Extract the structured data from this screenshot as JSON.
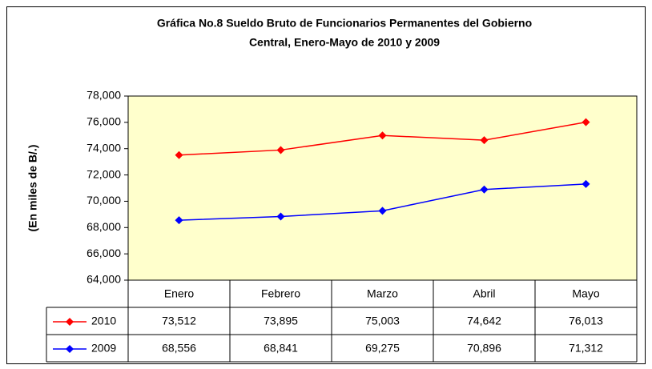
{
  "chart_data": {
    "type": "line",
    "title": [
      "Gráfica No.8 Sueldo Bruto de Funcionarios Permanentes del Gobierno",
      "Central, Enero-Mayo de 2010 y 2009"
    ],
    "y_axis_label": "(En miles de B/.)",
    "categories": [
      "Enero",
      "Febrero",
      "Marzo",
      "Abril",
      "Mayo"
    ],
    "series": [
      {
        "name": "2010",
        "color": "#ff0000",
        "values": [
          73512,
          73895,
          75003,
          74642,
          76013
        ],
        "value_labels": [
          "73,512",
          "73,895",
          "75,003",
          "74,642",
          "76,013"
        ]
      },
      {
        "name": "2009",
        "color": "#0000ff",
        "values": [
          68556,
          68841,
          69275,
          70896,
          71312
        ],
        "value_labels": [
          "68,556",
          "68,841",
          "69,275",
          "70,896",
          "71,312"
        ]
      }
    ],
    "ylim": [
      64000,
      78000
    ],
    "yticks": [
      {
        "value": 64000,
        "label": "64,000"
      },
      {
        "value": 66000,
        "label": "66,000"
      },
      {
        "value": 68000,
        "label": "68,000"
      },
      {
        "value": 70000,
        "label": "70,000"
      },
      {
        "value": 72000,
        "label": "72,000"
      },
      {
        "value": 74000,
        "label": "74,000"
      },
      {
        "value": 76000,
        "label": "76,000"
      },
      {
        "value": 78000,
        "label": "78,000"
      }
    ],
    "plot_background": "#ffffcc"
  }
}
